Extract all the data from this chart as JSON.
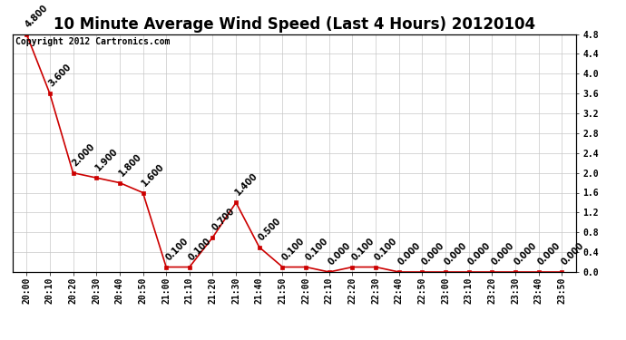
{
  "title": "10 Minute Average Wind Speed (Last 4 Hours) 20120104",
  "copyright": "Copyright 2012 Cartronics.com",
  "x_labels": [
    "20:00",
    "20:10",
    "20:20",
    "20:30",
    "20:40",
    "20:50",
    "21:00",
    "21:10",
    "21:20",
    "21:30",
    "21:40",
    "21:50",
    "22:00",
    "22:10",
    "22:20",
    "22:30",
    "22:40",
    "22:50",
    "23:00",
    "23:10",
    "23:20",
    "23:30",
    "23:40",
    "23:50"
  ],
  "y_values": [
    4.8,
    3.6,
    2.0,
    1.9,
    1.8,
    1.6,
    0.1,
    0.1,
    0.7,
    1.4,
    0.5,
    0.1,
    0.1,
    0.0,
    0.1,
    0.1,
    0.0,
    0.0,
    0.0,
    0.0,
    0.0,
    0.0,
    0.0,
    0.0
  ],
  "line_color": "#cc0000",
  "marker_color": "#cc0000",
  "bg_color": "#ffffff",
  "grid_color": "#c8c8c8",
  "ylim": [
    0.0,
    4.8
  ],
  "yticks": [
    0.0,
    0.4,
    0.8,
    1.2,
    1.6,
    2.0,
    2.4,
    2.8,
    3.2,
    3.6,
    4.0,
    4.4,
    4.8
  ],
  "title_fontsize": 12,
  "tick_fontsize": 7,
  "annot_fontsize": 7,
  "copyright_fontsize": 7
}
